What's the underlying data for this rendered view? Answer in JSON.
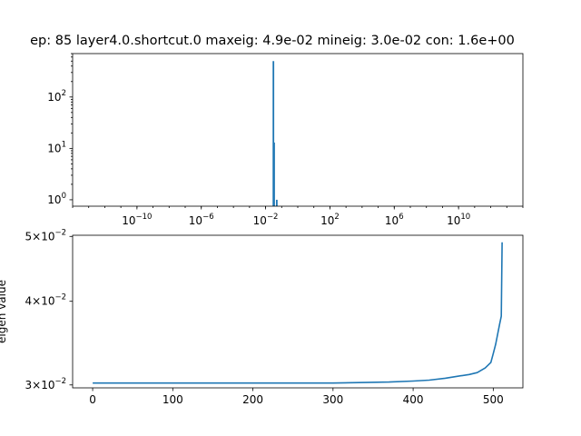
{
  "title": "ep: 85 layer4.0.shortcut.0 maxeig: 4.9e-02 mineig: 3.0e-02 con: 1.6e+00",
  "chart_data": [
    {
      "type": "bar",
      "subtype": "histogram",
      "xscale": "log",
      "yscale": "log",
      "xlim": [
        1e-14,
        100000000000000.0
      ],
      "ylim": [
        0.75,
        700
      ],
      "xticks": [
        {
          "value": 1e-10,
          "base": "10",
          "exp": "−10"
        },
        {
          "value": 1e-06,
          "base": "10",
          "exp": "−6"
        },
        {
          "value": 0.01,
          "base": "10",
          "exp": "−2"
        },
        {
          "value": 100.0,
          "base": "10",
          "exp": "2"
        },
        {
          "value": 1000000.0,
          "base": "10",
          "exp": "6"
        },
        {
          "value": 10000000000.0,
          "base": "10",
          "exp": "10"
        }
      ],
      "yticks": [
        {
          "value": 1,
          "base": "10",
          "exp": "0"
        },
        {
          "value": 10,
          "base": "10",
          "exp": "1"
        },
        {
          "value": 100,
          "base": "10",
          "exp": "2"
        }
      ],
      "bins": [
        {
          "x": 0.0302,
          "count": 500
        },
        {
          "x": 0.0335,
          "count": 13
        },
        {
          "x": 0.049,
          "count": 1
        }
      ],
      "color": "#1f77b4"
    },
    {
      "type": "line",
      "yscale": "log",
      "xlim": [
        -25,
        537
      ],
      "ylim": [
        0.0297,
        0.0502
      ],
      "ylabel": "eigen value",
      "xticks": [
        0,
        100,
        200,
        300,
        400,
        500
      ],
      "yticks": [
        {
          "value": 0.03,
          "mant": "3",
          "exp": "−2"
        },
        {
          "value": 0.04,
          "mant": "4",
          "exp": "−2"
        },
        {
          "value": 0.05,
          "mant": "5",
          "exp": "−2"
        }
      ],
      "series": [
        {
          "x": [
            0,
            50,
            100,
            150,
            200,
            250,
            300,
            340,
            370,
            400,
            420,
            440,
            455,
            470,
            480,
            490,
            497,
            500,
            503,
            505,
            508,
            510,
            511
          ],
          "y": [
            0.0302,
            0.0302,
            0.0302,
            0.0302,
            0.0302,
            0.0302,
            0.0302,
            0.03025,
            0.0303,
            0.0304,
            0.0305,
            0.0307,
            0.0309,
            0.0311,
            0.0313,
            0.0318,
            0.0324,
            0.0334,
            0.0345,
            0.0355,
            0.037,
            0.038,
            0.049
          ]
        }
      ],
      "color": "#1f77b4"
    }
  ]
}
